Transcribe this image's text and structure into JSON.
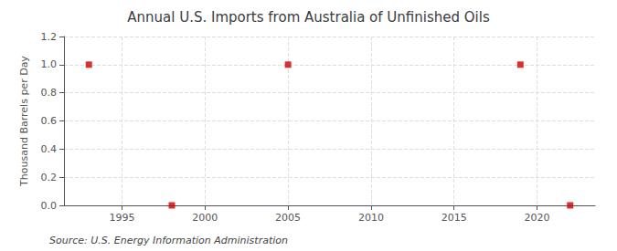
{
  "chart_data": {
    "type": "scatter",
    "title": "Annual U.S. Imports from Australia of Unfinished Oils",
    "ylabel": "Thousand Barrels per Day",
    "annotations": [
      "Source: U.S. Energy Information Administration"
    ],
    "x": [
      1993,
      1998,
      2005,
      2019,
      2022
    ],
    "values": [
      1.0,
      0.0,
      1.0,
      1.0,
      0.0
    ],
    "color": "#cc0000",
    "marker": "square",
    "xlim": [
      1991.5,
      2023.5
    ],
    "ylim": [
      0.0,
      1.2
    ],
    "xticks": [
      1995,
      2000,
      2005,
      2010,
      2015,
      2020
    ],
    "yticks": [
      {
        "value": 0.0,
        "label": "0.0"
      },
      0.2,
      0.4,
      0.6,
      0.8,
      {
        "value": 1.0,
        "label": "1.0"
      },
      1.2
    ],
    "grid": true
  }
}
